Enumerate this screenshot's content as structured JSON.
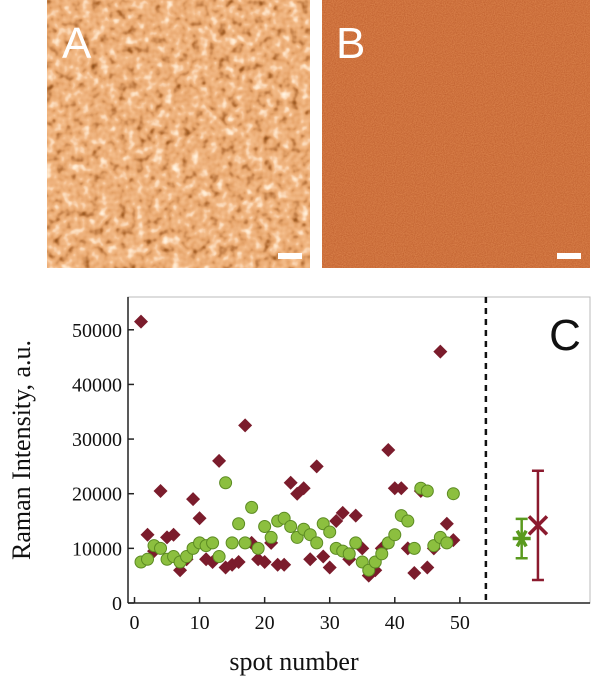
{
  "images": [
    {
      "label": "A"
    },
    {
      "label": "B"
    }
  ],
  "chart_data": {
    "type": "scatter",
    "xlabel": "spot number",
    "ylabel": "Raman Intensity, a.u.",
    "annotation": "C",
    "xlim": [
      -1,
      70
    ],
    "ylim": [
      0,
      56000
    ],
    "xticks": [
      0,
      10,
      20,
      30,
      40,
      50
    ],
    "yticks": [
      0,
      10000,
      20000,
      30000,
      40000,
      50000
    ],
    "vlines": [
      54
    ],
    "series": [
      {
        "color": "#7b1c2c",
        "marker": "diamond",
        "x": [
          1,
          2,
          3,
          4,
          5,
          6,
          7,
          8,
          9,
          10,
          11,
          12,
          13,
          14,
          15,
          16,
          17,
          18,
          19,
          20,
          21,
          22,
          23,
          24,
          25,
          26,
          27,
          28,
          29,
          30,
          31,
          32,
          33,
          34,
          35,
          36,
          37,
          38,
          39,
          40,
          41,
          42,
          43,
          44,
          45,
          46,
          47,
          48,
          49
        ],
        "values": [
          51500,
          12500,
          9500,
          20500,
          12000,
          12500,
          6000,
          8000,
          19000,
          15500,
          8000,
          7500,
          26000,
          6500,
          7000,
          7500,
          32500,
          11000,
          8000,
          7500,
          11000,
          7000,
          7000,
          22000,
          20000,
          21000,
          8000,
          25000,
          8500,
          6500,
          15000,
          16500,
          8000,
          16000,
          10000,
          5000,
          6000,
          10000,
          28000,
          21000,
          21000,
          10000,
          5500,
          20500,
          6500,
          10000,
          46000,
          14500,
          11500
        ]
      },
      {
        "color": "#8cbf3f",
        "marker": "circle",
        "x": [
          1,
          2,
          3,
          4,
          5,
          6,
          7,
          8,
          9,
          10,
          11,
          12,
          13,
          14,
          15,
          16,
          17,
          18,
          19,
          20,
          21,
          22,
          23,
          24,
          25,
          26,
          27,
          28,
          29,
          30,
          31,
          32,
          33,
          34,
          35,
          36,
          37,
          38,
          39,
          40,
          41,
          42,
          43,
          44,
          45,
          46,
          47,
          48,
          49
        ],
        "values": [
          7500,
          8000,
          10500,
          10000,
          8000,
          8500,
          7500,
          8500,
          10000,
          11000,
          10500,
          11000,
          8500,
          22000,
          11000,
          14500,
          11000,
          17500,
          10000,
          14000,
          12000,
          15000,
          15500,
          14000,
          12000,
          13500,
          12500,
          11000,
          14500,
          13000,
          10000,
          9500,
          9000,
          11000,
          7500,
          6000,
          7500,
          9000,
          11000,
          12500,
          16000,
          15000,
          10000,
          21000,
          20500,
          10500,
          12000,
          11000,
          20000
        ]
      },
      {
        "color": "#5a9a1e",
        "marker": "star",
        "x": [
          59.5
        ],
        "values": [
          11800
        ],
        "errors": [
          3600
        ]
      },
      {
        "color": "#8b1a2e",
        "marker": "cross",
        "x": [
          62
        ],
        "values": [
          14200
        ],
        "errors": [
          10000
        ]
      }
    ]
  }
}
